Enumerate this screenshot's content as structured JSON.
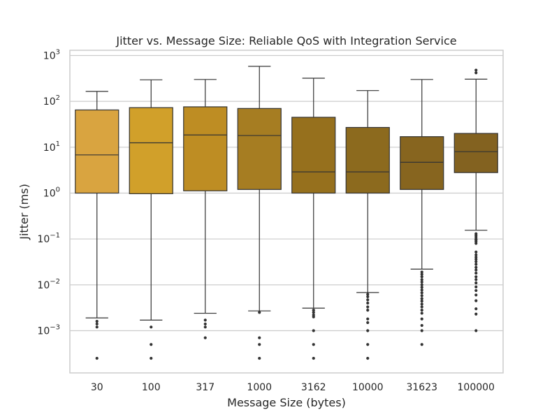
{
  "chart_data": {
    "type": "box",
    "title": "Jitter vs. Message Size: Reliable QoS with Integration Service",
    "xlabel": "Message Size (bytes)",
    "ylabel": "Jitter (ms)",
    "yscale": "log",
    "ylim": [
      0.00012,
      1300
    ],
    "y_ticks": [
      {
        "exp": "-3",
        "value": 0.001
      },
      {
        "exp": "-2",
        "value": 0.01
      },
      {
        "exp": "-1",
        "value": 0.1
      },
      {
        "exp": "0",
        "value": 1
      },
      {
        "exp": "1",
        "value": 10
      },
      {
        "exp": "2",
        "value": 100
      },
      {
        "exp": "3",
        "value": 1000
      }
    ],
    "grid": true,
    "categories": [
      "30",
      "100",
      "317",
      "1000",
      "3162",
      "10000",
      "31623",
      "100000"
    ],
    "boxes": [
      {
        "color": "#d9a440",
        "q1": 1.0,
        "median": 6.8,
        "q3": 65,
        "whisker_low": 0.0019,
        "whisker_high": 165,
        "outliers": [
          0.00025,
          0.0012,
          0.0014,
          0.0016
        ]
      },
      {
        "color": "#d1a02a",
        "q1": 0.97,
        "median": 12.5,
        "q3": 73,
        "whisker_low": 0.0017,
        "whisker_high": 295,
        "outliers": [
          0.00025,
          0.0005,
          0.0012
        ]
      },
      {
        "color": "#be8d23",
        "q1": 1.12,
        "median": 18.5,
        "q3": 76,
        "whisker_low": 0.0024,
        "whisker_high": 300,
        "outliers": [
          0.0007,
          0.0012,
          0.0014,
          0.0017
        ]
      },
      {
        "color": "#a67d22",
        "q1": 1.2,
        "median": 18,
        "q3": 70,
        "whisker_low": 0.0027,
        "whisker_high": 580,
        "outliers": [
          0.00025,
          0.0005,
          0.0007,
          0.0025
        ]
      },
      {
        "color": "#96701d",
        "q1": 1.0,
        "median": 2.9,
        "q3": 45,
        "whisker_low": 0.0031,
        "whisker_high": 320,
        "outliers": [
          0.00025,
          0.0005,
          0.001,
          0.002,
          0.0022,
          0.0025,
          0.0028
        ]
      },
      {
        "color": "#8c6a1e",
        "q1": 1.0,
        "median": 2.9,
        "q3": 27,
        "whisker_low": 0.0068,
        "whisker_high": 172,
        "outliers": [
          0.00025,
          0.0005,
          0.001,
          0.0015,
          0.0018,
          0.0028,
          0.0033,
          0.004,
          0.0047,
          0.0055,
          0.0062
        ]
      },
      {
        "color": "#87651f",
        "q1": 1.2,
        "median": 4.7,
        "q3": 17,
        "whisker_low": 0.022,
        "whisker_high": 300,
        "outliers": [
          0.0005,
          0.001,
          0.0013,
          0.0018,
          0.0024,
          0.0028,
          0.0033,
          0.0038,
          0.0044,
          0.005,
          0.0058,
          0.0067,
          0.0077,
          0.0088,
          0.01,
          0.0115,
          0.013,
          0.015,
          0.017,
          0.019
        ]
      },
      {
        "color": "#836220",
        "q1": 2.8,
        "median": 8.0,
        "q3": 20,
        "whisker_low": 0.155,
        "whisker_high": 305,
        "outliers": [
          0.001,
          0.0023,
          0.003,
          0.0045,
          0.006,
          0.0075,
          0.009,
          0.011,
          0.013,
          0.015,
          0.018,
          0.021,
          0.024,
          0.028,
          0.032,
          0.036,
          0.04,
          0.045,
          0.052,
          0.08,
          0.088,
          0.095,
          0.1,
          0.11,
          0.12,
          0.13,
          420,
          480
        ]
      }
    ]
  }
}
